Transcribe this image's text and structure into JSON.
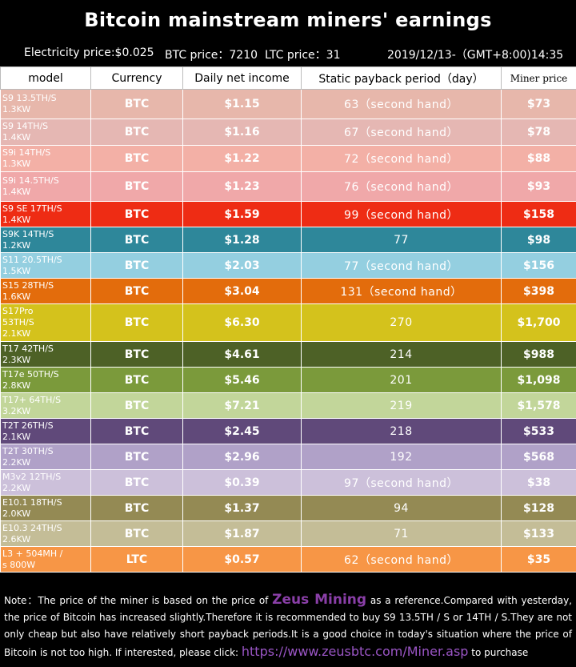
{
  "title": "Bitcoin mainstream miners' earnings",
  "info": {
    "electricity": "Electricity price:$0.025",
    "btc": "BTC price：7210",
    "ltc": "LTC price：31",
    "datetime": "2019/12/13-（GMT+8:00)14:35"
  },
  "headers": [
    "model",
    "Currency",
    "Daily net income",
    "Static payback period（day）",
    "Miner price"
  ],
  "rows": [
    {
      "model": "S9 13.5TH/S\n1.3KW",
      "currency": "BTC",
      "income": "$1.15",
      "payback": "63（second hand）",
      "price": "$73",
      "color": "#e7b7ab"
    },
    {
      "model": "S9   14TH/S\n1.4KW",
      "currency": "BTC",
      "income": "$1.16",
      "payback": "67（second hand）",
      "price": "$78",
      "color": "#e5b7b3"
    },
    {
      "model": "S9i  14TH/S\n1.3KW",
      "currency": "BTC",
      "income": "$1.22",
      "payback": "72（second hand）",
      "price": "$88",
      "color": "#f3b0a6"
    },
    {
      "model": "S9i  14.5TH/S\n1.4KW",
      "currency": "BTC",
      "income": "$1.23",
      "payback": "76（second hand）",
      "price": "$93",
      "color": "#f0a8a9"
    },
    {
      "model": "S9 SE  17TH/S\n1.4KW",
      "currency": "BTC",
      "income": "$1.59",
      "payback": "99（second hand）",
      "price": "$158",
      "color": "#ee2c14"
    },
    {
      "model": "S9K   14TH/S\n1.2KW",
      "currency": "BTC",
      "income": "$1.28",
      "payback": "77",
      "price": "$98",
      "color": "#2e879a"
    },
    {
      "model": "S11  20.5TH/S\n1.5KW",
      "currency": "BTC",
      "income": "$2.03",
      "payback": "77（second hand）",
      "price": "$156",
      "color": "#94cfe0"
    },
    {
      "model": "S15  28TH/S\n1.6KW",
      "currency": "BTC",
      "income": "$3.04",
      "payback": "131（second hand）",
      "price": "$398",
      "color": "#e36c0c"
    },
    {
      "model": "S17Pro\n53TH/S\n2.1KW",
      "currency": "BTC",
      "income": "$6.30",
      "payback": "270",
      "price": "$1,700",
      "color": "#d4c21c"
    },
    {
      "model": "T17  42TH/S\n2.3KW",
      "currency": "BTC",
      "income": "$4.61",
      "payback": "214",
      "price": "$988",
      "color": "#4d6126"
    },
    {
      "model": "T17e 50TH/S\n2.8KW",
      "currency": "BTC",
      "income": "$5.46",
      "payback": "201",
      "price": "$1,098",
      "color": "#7b9a3b"
    },
    {
      "model": "T17+ 64TH/S\n3.2KW",
      "currency": "BTC",
      "income": "$7.21",
      "payback": "219",
      "price": "$1,578",
      "color": "#c2d69a"
    },
    {
      "model": "T2T  26TH/S\n2.1KW",
      "currency": "BTC",
      "income": "$2.45",
      "payback": "218",
      "price": "$533",
      "color": "#60497a"
    },
    {
      "model": "T2T  30TH/S\n2.2KW",
      "currency": "BTC",
      "income": "$2.96",
      "payback": "192",
      "price": "$568",
      "color": "#b0a1c8"
    },
    {
      "model": "M3v2 12TH/S\n2.2KW",
      "currency": "BTC",
      "income": "$0.39",
      "payback": "97（second hand）",
      "price": "$38",
      "color": "#ccc0da"
    },
    {
      "model": "E10.1 18TH/S\n2.0KW",
      "currency": "BTC",
      "income": "$1.37",
      "payback": "94",
      "price": "$128",
      "color": "#948a54"
    },
    {
      "model": "E10.3 24TH/S\n2.6KW",
      "currency": "BTC",
      "income": "$1.87",
      "payback": "71",
      "price": "$133",
      "color": "#c4bd97"
    },
    {
      "model": "L3 + 504MH /\ns  800W",
      "currency": "LTC",
      "income": "$0.57",
      "payback": "62（second hand）",
      "price": "$35",
      "color": "#f79646"
    }
  ],
  "note": {
    "part1": "Note：The price of the miner is based on the price of ",
    "brand": "Zeus Mining",
    "part2": " as a reference.Compared with yesterday, the price of Bitcoin has increased slightly.Therefore it is recommended to buy S9 13.5TH / S or 14TH / S.They are not only cheap but also have relatively short payback periods.It is a good choice in today's situation where the price of Bitcoin is not too high. If interested, please click: ",
    "link": "https://www.zeusbtc.com/Miner.asp",
    "part3": " to purchase"
  }
}
